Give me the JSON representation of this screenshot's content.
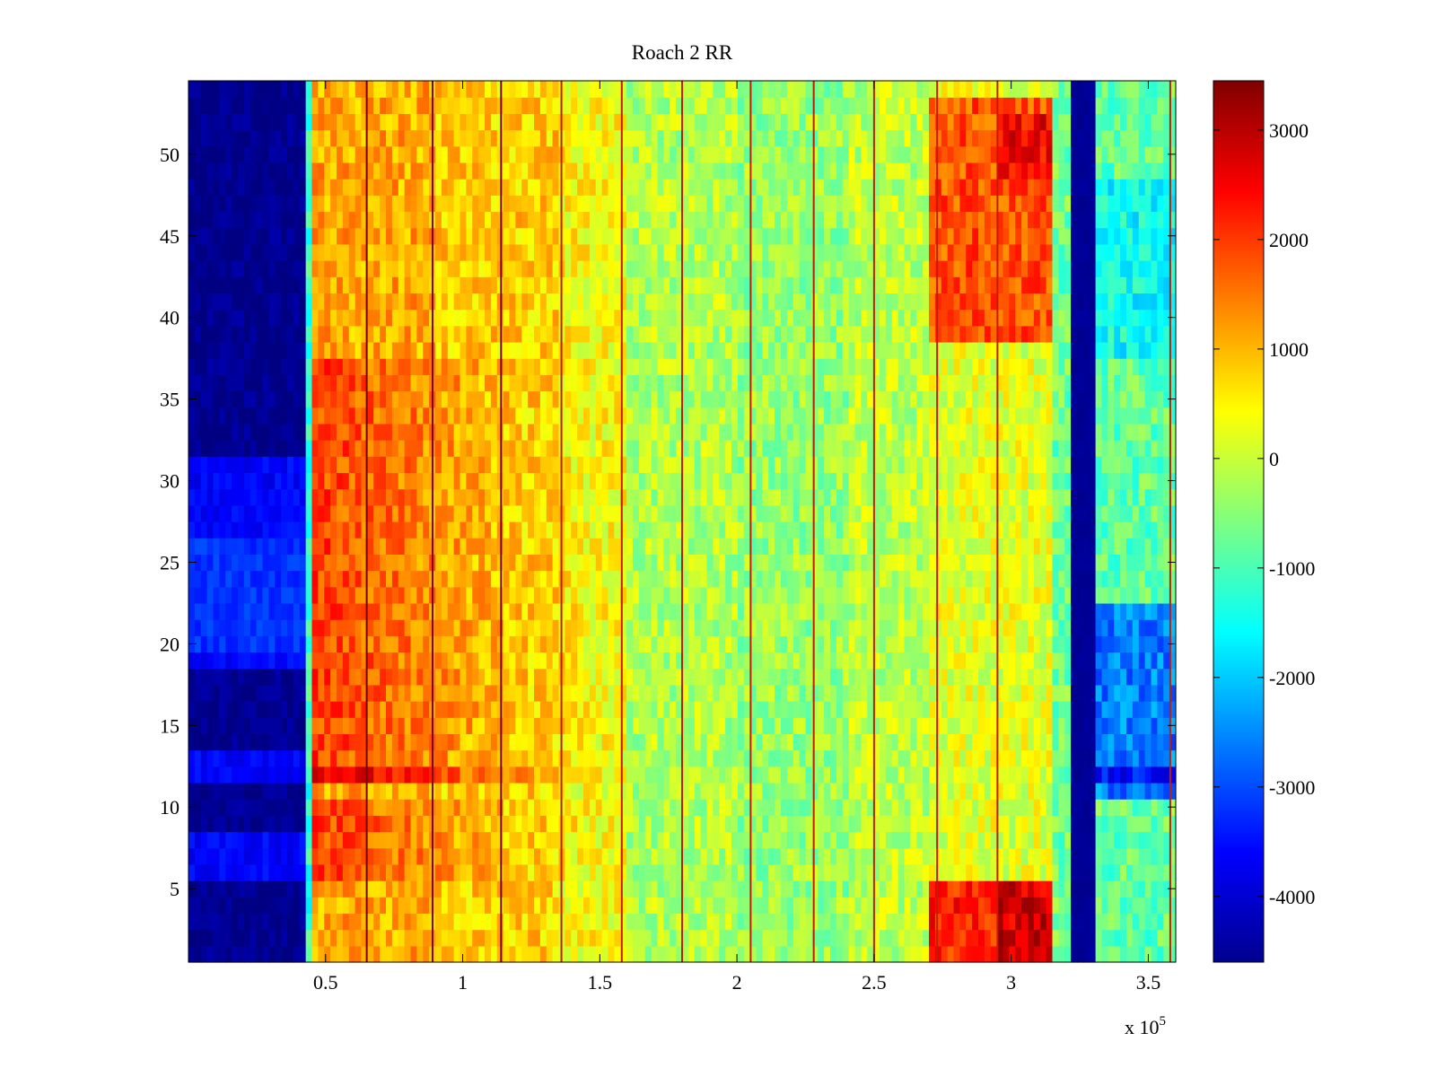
{
  "chart_data": {
    "type": "heatmap",
    "title": "Roach 2 RR",
    "xlabel": "",
    "ylabel": "",
    "x_exponent_label": "x 10",
    "x_exponent_power": "5",
    "xlim": [
      0,
      3.6
    ],
    "ylim": [
      0.5,
      54.5
    ],
    "x_ticks": [
      0.5,
      1,
      1.5,
      2,
      2.5,
      3,
      3.5
    ],
    "x_tick_labels": [
      "0.5",
      "1",
      "1.5",
      "2",
      "2.5",
      "3",
      "3.5"
    ],
    "y_ticks": [
      5,
      10,
      15,
      20,
      25,
      30,
      35,
      40,
      45,
      50
    ],
    "y_tick_labels": [
      "5",
      "10",
      "15",
      "20",
      "25",
      "30",
      "35",
      "40",
      "45",
      "50"
    ],
    "colorbar": {
      "colormap": "jet",
      "clim": [
        -4600,
        3450
      ],
      "ticks": [
        3000,
        2000,
        1000,
        0,
        -1000,
        -2000,
        -3000,
        -4000
      ],
      "tick_labels": [
        "3000",
        "2000",
        "1000",
        "0",
        "-1000",
        "-2000",
        "-3000",
        "-4000"
      ]
    },
    "rows": 54,
    "x_bands": [
      {
        "x": [
          0.0,
          0.42
        ],
        "value": -4500
      },
      {
        "x": [
          0.42,
          0.45
        ],
        "value": -1200
      },
      {
        "x": [
          0.45,
          0.9
        ],
        "value": 1100
      },
      {
        "x": [
          0.9,
          1.35
        ],
        "value": 800
      },
      {
        "x": [
          1.35,
          1.6
        ],
        "value": 400
      },
      {
        "x": [
          1.6,
          2.0
        ],
        "value": -200
      },
      {
        "x": [
          2.0,
          2.4
        ],
        "value": -400
      },
      {
        "x": [
          2.4,
          2.7
        ],
        "value": -100
      },
      {
        "x": [
          2.7,
          3.15
        ],
        "value": 600
      },
      {
        "x": [
          3.15,
          3.21
        ],
        "value": -700
      },
      {
        "x": [
          3.21,
          3.31
        ],
        "value": -4600
      },
      {
        "x": [
          3.31,
          3.6
        ],
        "value": -800
      }
    ],
    "vertical_lines_x": [
      0.65,
      0.89,
      1.14,
      1.36,
      1.58,
      1.8,
      2.05,
      2.28,
      2.5,
      2.73,
      2.95,
      3.58
    ],
    "row_profile": {
      "rows_1_5_right_hot": 2200,
      "rows_39_53_right_hot": 1800,
      "rows_6_37_left_hot": 1800,
      "row_12_strip": 2600
    }
  }
}
